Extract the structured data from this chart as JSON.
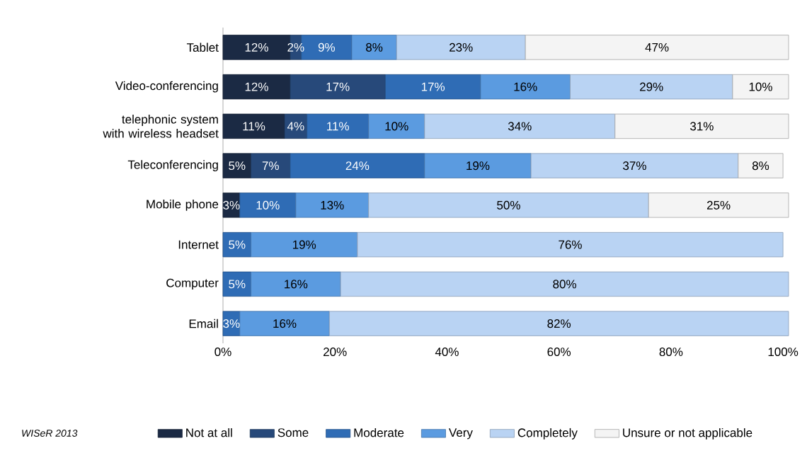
{
  "chart_data": {
    "type": "bar",
    "orientation": "horizontal",
    "stacked": true,
    "categories": [
      "Tablet",
      "Video-conferencing",
      "telephonic system with wireless headset",
      "Teleconferencing",
      "Mobile phone",
      "Internet",
      "Computer",
      "Email"
    ],
    "series": [
      {
        "name": "Not at all",
        "color": "#1b2a44",
        "values": [
          12,
          12,
          11,
          5,
          3,
          null,
          null,
          null
        ],
        "value_labels": [
          "12%",
          "12%",
          "11%",
          "5%",
          "3%",
          null,
          null,
          null
        ]
      },
      {
        "name": "Some",
        "color": "#27497a",
        "values": [
          2,
          17,
          4,
          7,
          null,
          null,
          null,
          null
        ],
        "value_labels": [
          "2%",
          "17%",
          "4%",
          "7%",
          null,
          null,
          null,
          null
        ]
      },
      {
        "name": "Moderate",
        "color": "#2f6cb5",
        "values": [
          9,
          17,
          11,
          24,
          10,
          5,
          5,
          3
        ],
        "value_labels": [
          "9%",
          "17%",
          "11%",
          "24%",
          "10%",
          "5%",
          "5%",
          "3%"
        ]
      },
      {
        "name": "Very",
        "color": "#5b9be0",
        "values": [
          8,
          16,
          10,
          19,
          13,
          19,
          16,
          16
        ],
        "value_labels": [
          "8%",
          "16%",
          "10%",
          "19%",
          "13%",
          "19%",
          "16%",
          "16%"
        ]
      },
      {
        "name": "Completely",
        "color": "#b9d3f3",
        "values": [
          23,
          29,
          34,
          37,
          50,
          76,
          80,
          82
        ],
        "value_labels": [
          "23%",
          "29%",
          "34%",
          "37%",
          "50%",
          "76%",
          "80%",
          "82%"
        ]
      },
      {
        "name": "Unsure or not applicable",
        "color": "#f4f4f4",
        "values": [
          47,
          10,
          31,
          8,
          25,
          null,
          null,
          null
        ],
        "value_labels": [
          "47%",
          "10%",
          "31%",
          "8%",
          "25%",
          null,
          null,
          null
        ]
      }
    ],
    "xlim": [
      0,
      101
    ],
    "xticks": [
      {
        "value": 0,
        "label": "0%"
      },
      {
        "value": 20,
        "label": "20%"
      },
      {
        "value": 40,
        "label": "40%"
      },
      {
        "value": 60,
        "label": "60%"
      },
      {
        "value": 80,
        "label": "80%"
      },
      {
        "value": 100,
        "label": "100%"
      }
    ],
    "legend": "bottom",
    "annotations": [
      "WISeR 2013"
    ]
  }
}
